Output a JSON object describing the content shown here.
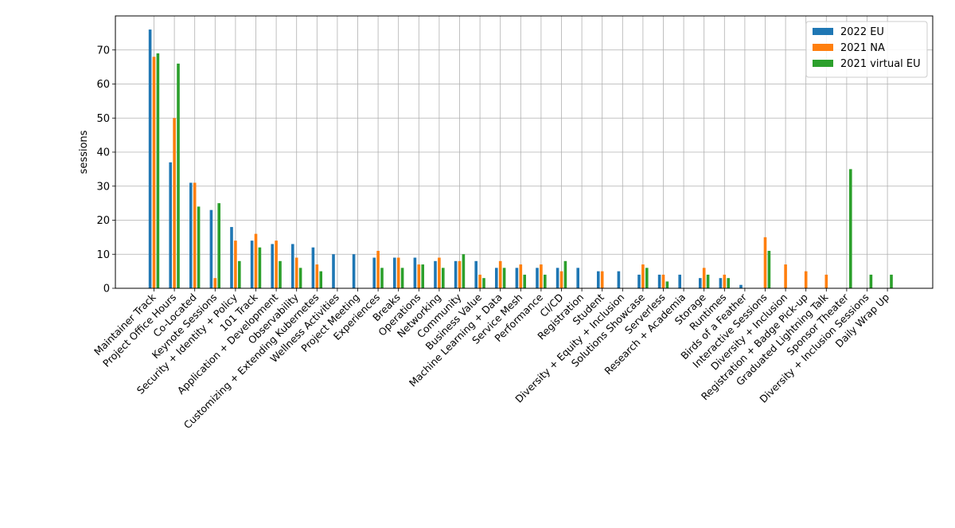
{
  "chart_data": {
    "type": "bar",
    "title": "",
    "xlabel": "",
    "ylabel": "sessions",
    "ylim": [
      0,
      80
    ],
    "yticks": [
      0,
      10,
      20,
      30,
      40,
      50,
      60,
      70
    ],
    "grid": true,
    "legend_position": "top-right",
    "categories": [
      "Maintainer Track",
      "Project Office Hours",
      "Co-Located",
      "Keynote Sessions",
      "Security + Identity + Policy",
      "101 Track",
      "Application + Development",
      "Observability",
      "Customizing + Extending Kubernetes",
      "Wellness Activities",
      "Project Meeting",
      "Experiences",
      "Breaks",
      "Operations",
      "Networking",
      "Community",
      "Business Value",
      "Machine Learning + Data",
      "Service Mesh",
      "Performance",
      "CI/CD",
      "Registration",
      "Student",
      "Diversity + Equity + Inclusion",
      "Solutions Showcase",
      "Serverless",
      "Research + Academia",
      "Storage",
      "Runtimes",
      "Birds of a Feather",
      "Interactive Sessions",
      "Diversity + Inclusion",
      "Registration + Badge Pick-up",
      "Graduated Lightning Talk",
      "Sponsor Theater",
      "Diversity + Inclusion Sessions",
      "Daily Wrap Up"
    ],
    "series": [
      {
        "name": "2022 EU",
        "color": "#1f77b4",
        "values": [
          76,
          37,
          31,
          23,
          18,
          14,
          13,
          13,
          12,
          10,
          10,
          9,
          9,
          9,
          8,
          8,
          8,
          6,
          6,
          6,
          6,
          6,
          5,
          5,
          4,
          4,
          4,
          3,
          3,
          1,
          0,
          0,
          0,
          0,
          0,
          0,
          0
        ]
      },
      {
        "name": "2021 NA",
        "color": "#ff7f0e",
        "values": [
          68,
          50,
          31,
          3,
          14,
          16,
          14,
          9,
          7,
          0,
          0,
          11,
          9,
          7,
          9,
          8,
          4,
          8,
          7,
          7,
          5,
          0,
          5,
          0,
          7,
          4,
          0,
          6,
          4,
          0,
          15,
          7,
          5,
          4,
          0,
          0,
          0
        ]
      },
      {
        "name": "2021 virtual EU",
        "color": "#2ca02c",
        "values": [
          69,
          66,
          24,
          25,
          8,
          12,
          8,
          6,
          5,
          0,
          0,
          6,
          6,
          7,
          6,
          10,
          3,
          6,
          4,
          4,
          8,
          0,
          0,
          0,
          6,
          2,
          0,
          4,
          3,
          0,
          11,
          0,
          0,
          0,
          35,
          4,
          4
        ]
      }
    ]
  }
}
